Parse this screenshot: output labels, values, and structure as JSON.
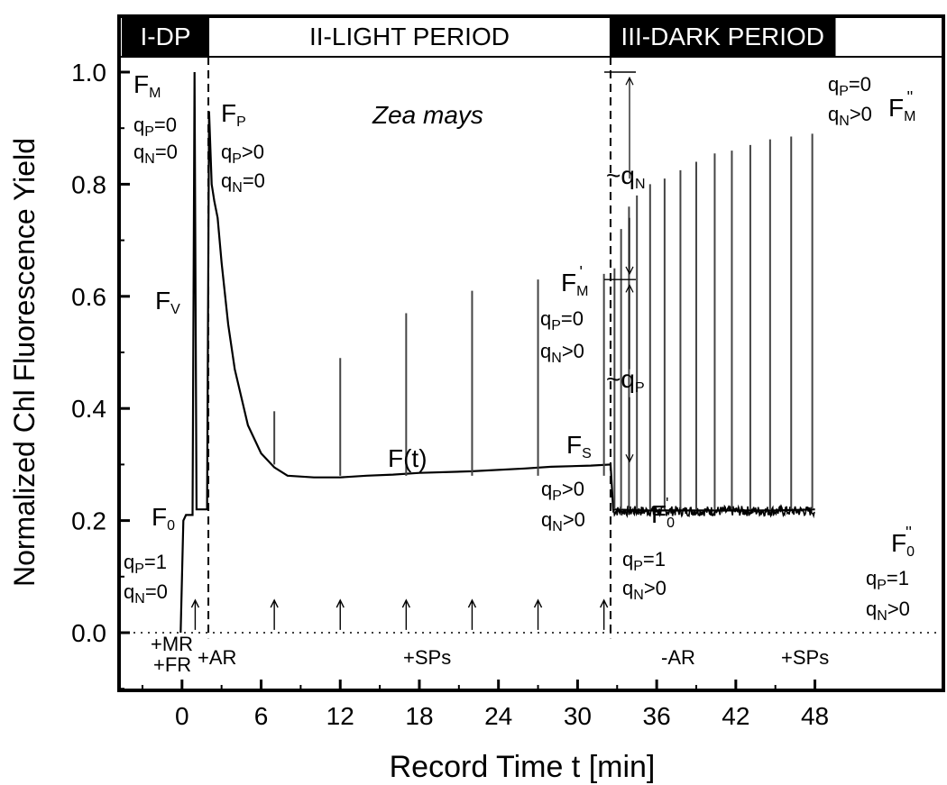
{
  "chart_data": {
    "type": "line",
    "xlabel": "Record Time t [min]",
    "ylabel": "Normalized Chl Fluorescence Yield",
    "xlim": [
      -4.5,
      49.5
    ],
    "ylim": [
      -0.1,
      1.08
    ],
    "x_ticks": [
      0,
      6,
      12,
      18,
      24,
      30,
      36,
      42,
      48
    ],
    "y_ticks": [
      0.0,
      0.2,
      0.4,
      0.6,
      0.8,
      1.0
    ],
    "y_tick_labels": [
      "0.0",
      "0.2",
      "0.4",
      "0.6",
      "0.8",
      "1.0"
    ],
    "phases": [
      {
        "label": "I-DP",
        "x_start": -4.5,
        "x_end": 2.0,
        "dark": true
      },
      {
        "label": "II-LIGHT PERIOD",
        "x_start": 2.0,
        "x_end": 32.5,
        "dark": false
      },
      {
        "label": "III-DARK PERIOD",
        "x_start": 32.5,
        "x_end": 49.5,
        "dark": true
      }
    ],
    "species_label": "Zea mays",
    "series": [
      {
        "values": [
          [
            -0.1,
            0.0
          ],
          [
            0.1,
            0.2
          ],
          [
            0.3,
            0.21
          ],
          [
            0.8,
            0.21
          ],
          [
            0.95,
            1.0
          ],
          [
            1.1,
            0.22
          ],
          [
            1.9,
            0.22
          ],
          [
            2.05,
            0.93
          ],
          [
            2.25,
            0.8
          ],
          [
            2.45,
            0.77
          ],
          [
            2.7,
            0.74
          ],
          [
            3.0,
            0.66
          ],
          [
            3.5,
            0.55
          ],
          [
            4.0,
            0.47
          ],
          [
            5.0,
            0.37
          ],
          [
            6.0,
            0.32
          ],
          [
            7.0,
            0.295
          ],
          [
            8.0,
            0.28
          ],
          [
            10.0,
            0.277
          ],
          [
            12.0,
            0.277
          ],
          [
            14.0,
            0.28
          ],
          [
            16.0,
            0.282
          ],
          [
            18.0,
            0.285
          ],
          [
            22.0,
            0.288
          ],
          [
            26.0,
            0.293
          ],
          [
            28.0,
            0.296
          ],
          [
            31.0,
            0.298
          ],
          [
            32.5,
            0.3
          ],
          [
            32.7,
            0.22
          ],
          [
            35.0,
            0.218
          ],
          [
            40.0,
            0.218
          ],
          [
            45.0,
            0.218
          ],
          [
            48.0,
            0.22
          ]
        ]
      }
    ],
    "saturating_pulses": [
      {
        "x": 7.0,
        "y": 0.395
      },
      {
        "x": 12.0,
        "y": 0.49
      },
      {
        "x": 17.0,
        "y": 0.57
      },
      {
        "x": 22.0,
        "y": 0.61
      },
      {
        "x": 27.0,
        "y": 0.63
      },
      {
        "x": 32.0,
        "y": 0.64
      },
      {
        "x": 32.8,
        "y": 0.65
      },
      {
        "x": 33.3,
        "y": 0.72
      },
      {
        "x": 33.9,
        "y": 0.76
      },
      {
        "x": 34.5,
        "y": 0.78
      },
      {
        "x": 35.5,
        "y": 0.8
      },
      {
        "x": 36.6,
        "y": 0.81
      },
      {
        "x": 37.8,
        "y": 0.825
      },
      {
        "x": 39.0,
        "y": 0.84
      },
      {
        "x": 40.4,
        "y": 0.855
      },
      {
        "x": 41.7,
        "y": 0.86
      },
      {
        "x": 43.1,
        "y": 0.87
      },
      {
        "x": 44.6,
        "y": 0.88
      },
      {
        "x": 46.2,
        "y": 0.885
      },
      {
        "x": 47.8,
        "y": 0.89
      }
    ],
    "arrow_marks": [
      1.0,
      7.0,
      12.0,
      17.0,
      22.0,
      27.0,
      32.0
    ],
    "annotations": {
      "fm": {
        "main": "F",
        "sub": "M"
      },
      "qp0_a": {
        "main": "q",
        "sub": "P",
        "tail": "=0"
      },
      "qn0_a": {
        "main": "q",
        "sub": "N",
        "tail": "=0"
      },
      "fv": {
        "main": "F",
        "sub": "V"
      },
      "f0": {
        "main": "F",
        "sub": "0"
      },
      "qp1_a": {
        "main": "q",
        "sub": "P",
        "tail": "=1"
      },
      "qn0_b": {
        "main": "q",
        "sub": "N",
        "tail": "=0"
      },
      "fp": {
        "main": "F",
        "sub": "P"
      },
      "qpg_a": {
        "main": "q",
        "sub": "P",
        "tail": ">0"
      },
      "qn0_c": {
        "main": "q",
        "sub": "N",
        "tail": "=0"
      },
      "zea": "Zea mays",
      "qn_bracket": {
        "main": "~q",
        "sub": "N"
      },
      "qp_bracket": {
        "main": "~q",
        "sub": "P"
      },
      "fm1": {
        "main": "F",
        "sub": "M",
        "sup": "'"
      },
      "qp0_b": {
        "main": "q",
        "sub": "P",
        "tail": "=0"
      },
      "qng_a": {
        "main": "q",
        "sub": "N",
        "tail": ">0"
      },
      "ft": "F(t)",
      "fs": {
        "main": "F",
        "sub": "S"
      },
      "qpg_b": {
        "main": "q",
        "sub": "P",
        "tail": ">0"
      },
      "qng_b": {
        "main": "q",
        "sub": "N",
        "tail": ">0"
      },
      "f01": {
        "main": "F",
        "sub": "0",
        "sup": "'"
      },
      "qp1_b": {
        "main": "q",
        "sub": "P",
        "tail": "=1"
      },
      "qng_c": {
        "main": "q",
        "sub": "N",
        "tail": ">0"
      },
      "qp0_c": {
        "main": "q",
        "sub": "P",
        "tail": "=0"
      },
      "qng_d": {
        "main": "q",
        "sub": "N",
        "tail": ">0"
      },
      "fm2": {
        "main": "F",
        "sub": "M",
        "sup": "''"
      },
      "f02": {
        "main": "F",
        "sub": "0",
        "sup": "''"
      },
      "qp1_c": {
        "main": "q",
        "sub": "P",
        "tail": "=1"
      },
      "qng_e": {
        "main": "q",
        "sub": "N",
        "tail": ">0"
      },
      "mr": "+MR",
      "fr": "+FR",
      "ar": "+AR",
      "sps1": "+SPs",
      "minus_ar": "-AR",
      "sps2": "+SPs"
    }
  }
}
